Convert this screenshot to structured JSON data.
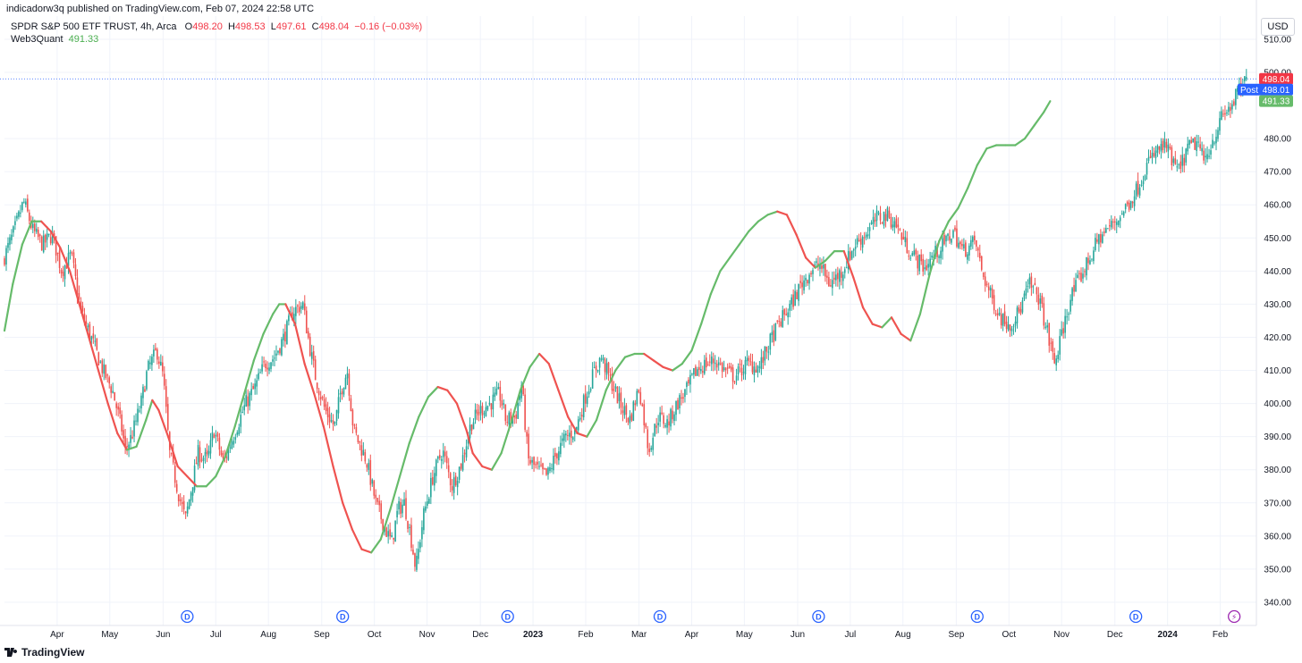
{
  "publisher": "indicadorw3q published on TradingView.com, Feb 07, 2024 22:58 UTC",
  "legend": {
    "symbol": "SPDR S&P 500 ETF TRUST, 4h, Arca",
    "o_label": "O",
    "o_value": "498.20",
    "h_label": "H",
    "h_value": "498.53",
    "l_label": "L",
    "l_value": "497.61",
    "c_label": "C",
    "c_value": "498.04",
    "change": "−0.16 (−0.03%)",
    "indicator_name": "Web3Quant",
    "indicator_value": "491.33"
  },
  "currency_button": "USD",
  "footer": {
    "brand": "TradingView"
  },
  "colors": {
    "up": "#26a69a",
    "down": "#ef5350",
    "indicator_up": "#66bb6a",
    "indicator_down": "#ef5350",
    "grid": "#f0f3fa",
    "price_tag": "#f23645",
    "post_tag": "#2962ff",
    "indicator_tag": "#66bb6a",
    "dividend": "#2962ff",
    "split": "#9c27b0"
  },
  "chart_data": {
    "type": "candlestick",
    "title": "SPDR S&P 500 ETF TRUST, 4h, Arca",
    "ylim": [
      335,
      515
    ],
    "y_ticks": [
      "510.00",
      "500.00",
      "480.00",
      "470.00",
      "460.00",
      "450.00",
      "440.00",
      "430.00",
      "420.00",
      "410.00",
      "400.00",
      "390.00",
      "380.00",
      "370.00",
      "360.00",
      "350.00",
      "340.00"
    ],
    "x_ticks": [
      {
        "label": "Apr",
        "t": 2022.25
      },
      {
        "label": "May",
        "t": 2022.333
      },
      {
        "label": "Jun",
        "t": 2022.417
      },
      {
        "label": "Jul",
        "t": 2022.5
      },
      {
        "label": "Aug",
        "t": 2022.583
      },
      {
        "label": "Sep",
        "t": 2022.667
      },
      {
        "label": "Oct",
        "t": 2022.75
      },
      {
        "label": "Nov",
        "t": 2022.833
      },
      {
        "label": "Dec",
        "t": 2022.917
      },
      {
        "label": "2023",
        "t": 2023.0,
        "bold": true
      },
      {
        "label": "Feb",
        "t": 2023.083
      },
      {
        "label": "Mar",
        "t": 2023.167
      },
      {
        "label": "Apr",
        "t": 2023.25
      },
      {
        "label": "May",
        "t": 2023.333
      },
      {
        "label": "Jun",
        "t": 2023.417
      },
      {
        "label": "Jul",
        "t": 2023.5
      },
      {
        "label": "Aug",
        "t": 2023.583
      },
      {
        "label": "Sep",
        "t": 2023.667
      },
      {
        "label": "Oct",
        "t": 2023.75
      },
      {
        "label": "Nov",
        "t": 2023.833
      },
      {
        "label": "Dec",
        "t": 2023.917
      },
      {
        "label": "2024",
        "t": 2024.0,
        "bold": true
      },
      {
        "label": "Feb",
        "t": 2024.083
      }
    ],
    "price_path": [
      [
        2022.167,
        443
      ],
      [
        2022.185,
        452
      ],
      [
        2022.2,
        461
      ],
      [
        2022.215,
        452
      ],
      [
        2022.23,
        448
      ],
      [
        2022.245,
        451
      ],
      [
        2022.26,
        440
      ],
      [
        2022.275,
        445
      ],
      [
        2022.29,
        428
      ],
      [
        2022.31,
        418
      ],
      [
        2022.325,
        410
      ],
      [
        2022.34,
        404
      ],
      [
        2022.355,
        392
      ],
      [
        2022.36,
        386
      ],
      [
        2022.37,
        390
      ],
      [
        2022.385,
        400
      ],
      [
        2022.395,
        410
      ],
      [
        2022.41,
        416
      ],
      [
        2022.42,
        408
      ],
      [
        2022.43,
        385
      ],
      [
        2022.445,
        372
      ],
      [
        2022.455,
        365
      ],
      [
        2022.465,
        375
      ],
      [
        2022.475,
        385
      ],
      [
        2022.49,
        383
      ],
      [
        2022.5,
        392
      ],
      [
        2022.515,
        382
      ],
      [
        2022.53,
        390
      ],
      [
        2022.55,
        400
      ],
      [
        2022.565,
        405
      ],
      [
        2022.58,
        412
      ],
      [
        2022.595,
        414
      ],
      [
        2022.61,
        420
      ],
      [
        2022.625,
        428
      ],
      [
        2022.64,
        430
      ],
      [
        2022.65,
        418
      ],
      [
        2022.66,
        408
      ],
      [
        2022.675,
        398
      ],
      [
        2022.69,
        393
      ],
      [
        2022.7,
        404
      ],
      [
        2022.71,
        410
      ],
      [
        2022.72,
        392
      ],
      [
        2022.74,
        383
      ],
      [
        2022.755,
        370
      ],
      [
        2022.77,
        362
      ],
      [
        2022.78,
        358
      ],
      [
        2022.79,
        368
      ],
      [
        2022.8,
        370
      ],
      [
        2022.81,
        360
      ],
      [
        2022.818,
        350
      ],
      [
        2022.83,
        366
      ],
      [
        2022.845,
        378
      ],
      [
        2022.86,
        386
      ],
      [
        2022.875,
        375
      ],
      [
        2022.89,
        382
      ],
      [
        2022.905,
        394
      ],
      [
        2022.92,
        398
      ],
      [
        2022.935,
        400
      ],
      [
        2022.95,
        403
      ],
      [
        2022.96,
        395
      ],
      [
        2022.975,
        396
      ],
      [
        2022.985,
        406
      ],
      [
        2022.995,
        383
      ],
      [
        2023.01,
        380
      ],
      [
        2023.025,
        378
      ],
      [
        2023.04,
        385
      ],
      [
        2023.055,
        390
      ],
      [
        2023.07,
        392
      ],
      [
        2023.085,
        402
      ],
      [
        2023.1,
        410
      ],
      [
        2023.11,
        414
      ],
      [
        2023.125,
        407
      ],
      [
        2023.14,
        400
      ],
      [
        2023.155,
        395
      ],
      [
        2023.17,
        405
      ],
      [
        2023.185,
        386
      ],
      [
        2023.2,
        396
      ],
      [
        2023.215,
        394
      ],
      [
        2023.23,
        400
      ],
      [
        2023.245,
        404
      ],
      [
        2023.26,
        410
      ],
      [
        2023.275,
        412
      ],
      [
        2023.29,
        413
      ],
      [
        2023.305,
        410
      ],
      [
        2023.32,
        408
      ],
      [
        2023.34,
        412
      ],
      [
        2023.36,
        411
      ],
      [
        2023.375,
        418
      ],
      [
        2023.39,
        424
      ],
      [
        2023.41,
        430
      ],
      [
        2023.425,
        436
      ],
      [
        2023.44,
        440
      ],
      [
        2023.455,
        442
      ],
      [
        2023.47,
        436
      ],
      [
        2023.49,
        440
      ],
      [
        2023.51,
        448
      ],
      [
        2023.53,
        452
      ],
      [
        2023.545,
        456
      ],
      [
        2023.56,
        457
      ],
      [
        2023.575,
        454
      ],
      [
        2023.59,
        448
      ],
      [
        2023.605,
        444
      ],
      [
        2023.62,
        441
      ],
      [
        2023.635,
        445
      ],
      [
        2023.65,
        448
      ],
      [
        2023.665,
        452
      ],
      [
        2023.68,
        446
      ],
      [
        2023.7,
        449
      ],
      [
        2023.71,
        440
      ],
      [
        2023.725,
        432
      ],
      [
        2023.74,
        426
      ],
      [
        2023.755,
        424
      ],
      [
        2023.77,
        428
      ],
      [
        2023.785,
        436
      ],
      [
        2023.8,
        432
      ],
      [
        2023.815,
        420
      ],
      [
        2023.825,
        412
      ],
      [
        2023.835,
        420
      ],
      [
        2023.85,
        432
      ],
      [
        2023.865,
        438
      ],
      [
        2023.88,
        444
      ],
      [
        2023.895,
        450
      ],
      [
        2023.91,
        453
      ],
      [
        2023.925,
        456
      ],
      [
        2023.94,
        460
      ],
      [
        2023.955,
        465
      ],
      [
        2023.97,
        472
      ],
      [
        2023.985,
        476
      ],
      [
        2024.0,
        478
      ],
      [
        2024.01,
        473
      ],
      [
        2024.02,
        470
      ],
      [
        2024.035,
        477
      ],
      [
        2024.05,
        479
      ],
      [
        2024.06,
        473
      ],
      [
        2024.075,
        480
      ],
      [
        2024.09,
        487
      ],
      [
        2024.1,
        489
      ],
      [
        2024.107,
        491
      ],
      [
        2024.113,
        494
      ],
      [
        2024.12,
        495
      ],
      [
        2024.127,
        498
      ]
    ],
    "indicator": {
      "name": "Web3Quant",
      "last_value": 491.33,
      "path": [
        [
          2022.167,
          422
        ],
        [
          2022.18,
          436
        ],
        [
          2022.195,
          448
        ],
        [
          2022.21,
          455
        ],
        [
          2022.225,
          455
        ],
        [
          2022.24,
          452
        ],
        [
          2022.255,
          447
        ],
        [
          2022.27,
          440
        ],
        [
          2022.285,
          430
        ],
        [
          2022.3,
          420
        ],
        [
          2022.315,
          410
        ],
        [
          2022.33,
          400
        ],
        [
          2022.345,
          391
        ],
        [
          2022.36,
          386
        ],
        [
          2022.375,
          387
        ],
        [
          2022.39,
          395
        ],
        [
          2022.4,
          401
        ],
        [
          2022.41,
          398
        ],
        [
          2022.425,
          390
        ],
        [
          2022.44,
          381
        ],
        [
          2022.455,
          378
        ],
        [
          2022.47,
          375
        ],
        [
          2022.485,
          375
        ],
        [
          2022.5,
          378
        ],
        [
          2022.515,
          384
        ],
        [
          2022.53,
          393
        ],
        [
          2022.545,
          403
        ],
        [
          2022.56,
          413
        ],
        [
          2022.575,
          421
        ],
        [
          2022.59,
          427
        ],
        [
          2022.6,
          430
        ],
        [
          2022.61,
          430
        ],
        [
          2022.625,
          424
        ],
        [
          2022.64,
          412
        ],
        [
          2022.655,
          403
        ],
        [
          2022.67,
          393
        ],
        [
          2022.685,
          381
        ],
        [
          2022.7,
          370
        ],
        [
          2022.715,
          362
        ],
        [
          2022.73,
          356
        ],
        [
          2022.745,
          355
        ],
        [
          2022.76,
          359
        ],
        [
          2022.775,
          368
        ],
        [
          2022.79,
          378
        ],
        [
          2022.805,
          388
        ],
        [
          2022.82,
          396
        ],
        [
          2022.835,
          402
        ],
        [
          2022.85,
          405
        ],
        [
          2022.865,
          404
        ],
        [
          2022.88,
          400
        ],
        [
          2022.895,
          392
        ],
        [
          2022.905,
          385
        ],
        [
          2022.92,
          381
        ],
        [
          2022.935,
          380
        ],
        [
          2022.95,
          385
        ],
        [
          2022.965,
          394
        ],
        [
          2022.98,
          404
        ],
        [
          2022.995,
          411
        ],
        [
          2023.01,
          415
        ],
        [
          2023.025,
          412
        ],
        [
          2023.04,
          404
        ],
        [
          2023.055,
          396
        ],
        [
          2023.07,
          391
        ],
        [
          2023.085,
          390
        ],
        [
          2023.1,
          395
        ],
        [
          2023.115,
          404
        ],
        [
          2023.13,
          410
        ],
        [
          2023.145,
          414
        ],
        [
          2023.16,
          415
        ],
        [
          2023.175,
          415
        ],
        [
          2023.19,
          413
        ],
        [
          2023.205,
          411
        ],
        [
          2023.22,
          410
        ],
        [
          2023.235,
          412
        ],
        [
          2023.25,
          416
        ],
        [
          2023.265,
          424
        ],
        [
          2023.28,
          433
        ],
        [
          2023.295,
          440
        ],
        [
          2023.31,
          444
        ],
        [
          2023.325,
          448
        ],
        [
          2023.34,
          452
        ],
        [
          2023.355,
          455
        ],
        [
          2023.37,
          457
        ],
        [
          2023.385,
          458
        ],
        [
          2023.4,
          457
        ],
        [
          2023.415,
          451
        ],
        [
          2023.43,
          444
        ],
        [
          2023.445,
          441
        ],
        [
          2023.46,
          443
        ],
        [
          2023.475,
          446
        ],
        [
          2023.49,
          446
        ],
        [
          2023.505,
          438
        ],
        [
          2023.52,
          429
        ],
        [
          2023.535,
          424
        ],
        [
          2023.55,
          423
        ],
        [
          2023.565,
          426
        ],
        [
          2023.58,
          421
        ],
        [
          2023.595,
          419
        ],
        [
          2023.61,
          427
        ],
        [
          2023.625,
          439
        ],
        [
          2023.64,
          449
        ],
        [
          2023.655,
          455
        ],
        [
          2023.67,
          459
        ],
        [
          2023.685,
          465
        ],
        [
          2023.7,
          472
        ],
        [
          2023.715,
          477
        ],
        [
          2023.73,
          478
        ],
        [
          2023.745,
          478
        ],
        [
          2023.76,
          478
        ],
        [
          2023.775,
          480
        ],
        [
          2023.79,
          484
        ],
        [
          2023.805,
          488
        ],
        [
          2023.815,
          491.3
        ]
      ]
    },
    "dividend_markers": [
      2022.455,
      2022.7,
      2022.96,
      2023.2,
      2023.45,
      2023.7,
      2023.95
    ],
    "split_marker": 2024.105,
    "last_price_tags": {
      "price": "498.04",
      "post_label": "Post",
      "post": "498.01",
      "indicator": "491.33"
    },
    "marker_labels": {
      "dividend": "D",
      "split": "⚡"
    }
  }
}
